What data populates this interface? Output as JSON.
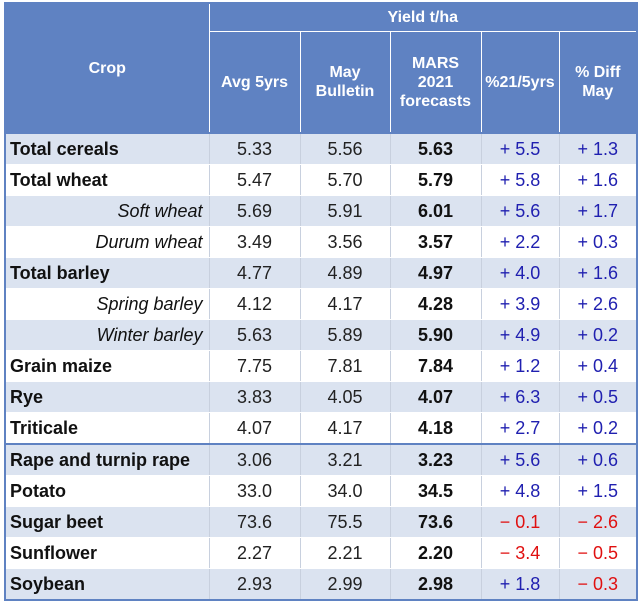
{
  "header": {
    "crop": "Crop",
    "yield_group": "Yield t/ha",
    "avg": "Avg 5yrs",
    "may_bulletin_l1": "May",
    "may_bulletin_l2": "Bulletin",
    "mars_l1": "MARS",
    "mars_l2": "2021",
    "mars_l3": "forecasts",
    "pct_5yrs": "%21/5yrs",
    "pct_diff_l1": "% Diff",
    "pct_diff_l2": "May"
  },
  "rows": [
    {
      "crop": "Total cereals",
      "avg": "5.33",
      "may": "5.56",
      "mars": "5.63",
      "pct5": "+ 5.5",
      "diff": "+ 1.3"
    },
    {
      "crop": "Total wheat",
      "avg": "5.47",
      "may": "5.70",
      "mars": "5.79",
      "pct5": "+ 5.8",
      "diff": "+ 1.6"
    },
    {
      "crop": "Soft wheat",
      "avg": "5.69",
      "may": "5.91",
      "mars": "6.01",
      "pct5": "+ 5.6",
      "diff": "+ 1.7"
    },
    {
      "crop": "Durum wheat",
      "avg": "3.49",
      "may": "3.56",
      "mars": "3.57",
      "pct5": "+ 2.2",
      "diff": "+ 0.3"
    },
    {
      "crop": "Total barley",
      "avg": "4.77",
      "may": "4.89",
      "mars": "4.97",
      "pct5": "+ 4.0",
      "diff": "+ 1.6"
    },
    {
      "crop": "Spring barley",
      "avg": "4.12",
      "may": "4.17",
      "mars": "4.28",
      "pct5": "+ 3.9",
      "diff": "+ 2.6"
    },
    {
      "crop": "Winter barley",
      "avg": "5.63",
      "may": "5.89",
      "mars": "5.90",
      "pct5": "+ 4.9",
      "diff": "+ 0.2"
    },
    {
      "crop": "Grain maize",
      "avg": "7.75",
      "may": "7.81",
      "mars": "7.84",
      "pct5": "+ 1.2",
      "diff": "+ 0.4"
    },
    {
      "crop": "Rye",
      "avg": "3.83",
      "may": "4.05",
      "mars": "4.07",
      "pct5": "+ 6.3",
      "diff": "+ 0.5"
    },
    {
      "crop": "Triticale",
      "avg": "4.07",
      "may": "4.17",
      "mars": "4.18",
      "pct5": "+ 2.7",
      "diff": "+ 0.2"
    },
    {
      "crop": "Rape and turnip rape",
      "avg": "3.06",
      "may": "3.21",
      "mars": "3.23",
      "pct5": "+ 5.6",
      "diff": "+ 0.6"
    },
    {
      "crop": "Potato",
      "avg": "33.0",
      "may": "34.0",
      "mars": "34.5",
      "pct5": "+ 4.8",
      "diff": "+ 1.5"
    },
    {
      "crop": "Sugar beet",
      "avg": "73.6",
      "may": "75.5",
      "mars": "73.6",
      "pct5": "− 0.1",
      "diff": "− 2.6"
    },
    {
      "crop": "Sunflower",
      "avg": "2.27",
      "may": "2.21",
      "mars": "2.20",
      "pct5": "− 3.4",
      "diff": "− 0.5"
    },
    {
      "crop": "Soybean",
      "avg": "2.93",
      "may": "2.99",
      "mars": "2.98",
      "pct5": "+ 1.8",
      "diff": "− 0.3"
    }
  ],
  "colors": {
    "header_bg": "#5f82c2",
    "row_alt_bg": "#dbe3f0",
    "positive": "#2020b0",
    "negative": "#e01010"
  }
}
